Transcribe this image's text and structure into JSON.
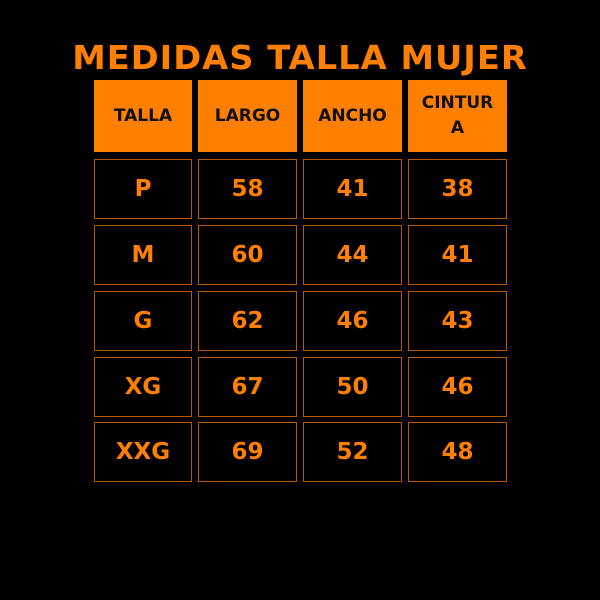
{
  "title": "MEDIDAS TALLA MUJER",
  "colors": {
    "accent": "#ff7f00",
    "background": "#000000",
    "header_text": "#111111",
    "cell_border": "#b85800"
  },
  "table": {
    "headers": [
      "TALLA",
      "LARGO",
      "ANCHO",
      "CINTURA"
    ],
    "rows": [
      [
        "P",
        "58",
        "41",
        "38"
      ],
      [
        "M",
        "60",
        "44",
        "41"
      ],
      [
        "G",
        "62",
        "46",
        "43"
      ],
      [
        "XG",
        "67",
        "50",
        "46"
      ],
      [
        "XXG",
        "69",
        "52",
        "48"
      ]
    ]
  }
}
